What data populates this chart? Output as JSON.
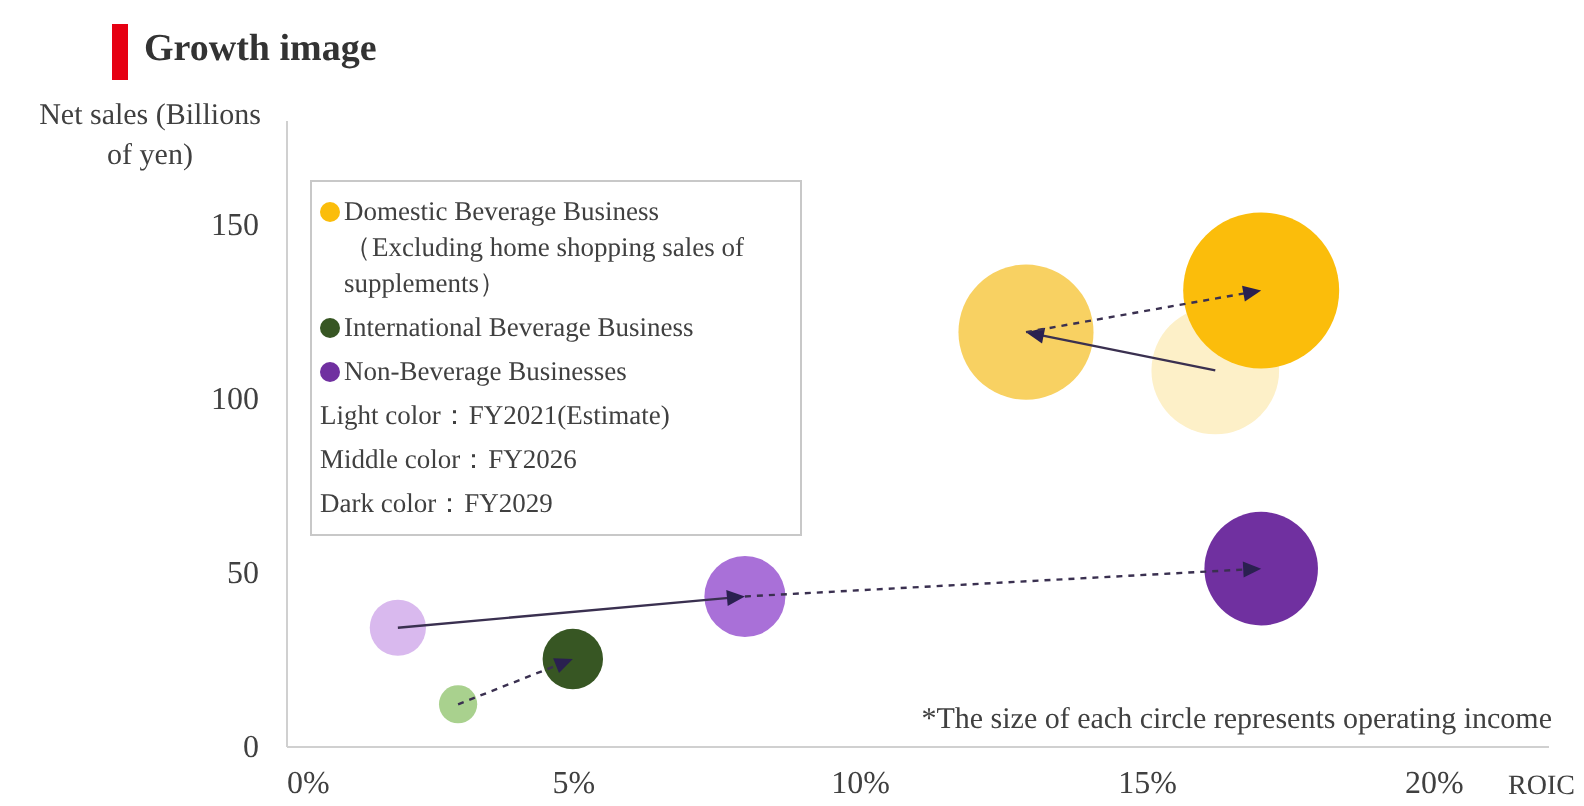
{
  "chart_data": {
    "type": "bubble",
    "title": "Growth image",
    "xlabel": "ROIC",
    "ylabel": "Net sales (Billions of yen)",
    "xlim": [
      0,
      22
    ],
    "xticks": [
      {
        "value": 0,
        "label": "0%"
      },
      {
        "value": 5,
        "label": "5%"
      },
      {
        "value": 10,
        "label": "10%"
      },
      {
        "value": 15,
        "label": "15%"
      },
      {
        "value": 20,
        "label": "20%"
      }
    ],
    "ylim": [
      0,
      180
    ],
    "yticks": [
      0,
      50,
      100,
      150
    ],
    "grid": false,
    "legend": "top left",
    "series": [
      {
        "name": "Domestic Beverage Business（Excluding home shopping sales of supplements）",
        "color": "#fbbd0b",
        "x": [
          16.2,
          12.9,
          17.0
        ],
        "values": [
          108,
          119,
          131
        ],
        "sizes": [
          0.67,
          0.75,
          1
        ],
        "colors": [
          "#fdf0c8",
          "#f8d162",
          "#fbbd0b"
        ]
      },
      {
        "name": "International Beverage Business",
        "color": "#375623",
        "x": [
          3.0,
          5.0
        ],
        "values": [
          12,
          25
        ],
        "sizes": [
          0.06,
          0.15
        ],
        "colors": [
          "#a9d18e",
          "#375623"
        ]
      },
      {
        "name": "Non-Beverage Businesses",
        "color": "#7030a0",
        "x": [
          1.95,
          8.0,
          17.0
        ],
        "values": [
          34,
          43,
          51
        ],
        "sizes": [
          0.13,
          0.27,
          0.53
        ],
        "colors": [
          "#d9b9ee",
          "#a970d8",
          "#7030a0"
        ]
      }
    ],
    "annotations": [
      "Light color：FY2021(Estimate)",
      "Middle color：FY2026",
      "Dark color：FY2029",
      "*The size of each circle represents operating income"
    ]
  }
}
